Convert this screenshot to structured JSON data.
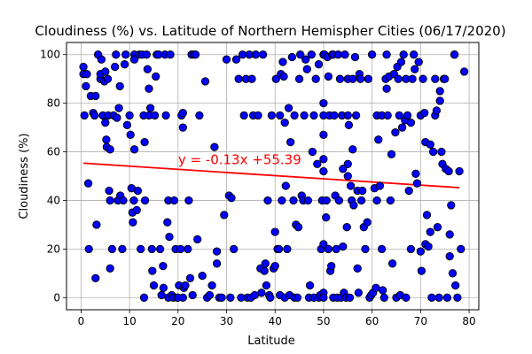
{
  "chart_data": {
    "type": "scatter",
    "title": "Cloudiness (%) vs. Latitude of Northern Hemispher Cities (06/17/2020)",
    "xlabel": "Latitude",
    "ylabel": "Cloudiness (%)",
    "xlim": [
      -3,
      82
    ],
    "ylim": [
      -5,
      105
    ],
    "xticks": [
      0,
      10,
      20,
      30,
      40,
      50,
      60,
      70,
      80
    ],
    "yticks": [
      0,
      20,
      40,
      60,
      80,
      100
    ],
    "grid": true,
    "marker_color": "#0000ff",
    "marker_edge": "#000000",
    "regression": {
      "slope": -0.13,
      "intercept": 55.39,
      "x_range": [
        0.5,
        78
      ],
      "equation_label": "y = -0.13x +55.39",
      "color": "#ff0000"
    },
    "points": [
      [
        0.5,
        95
      ],
      [
        0.5,
        92
      ],
      [
        0.7,
        75
      ],
      [
        1,
        87
      ],
      [
        1.2,
        92
      ],
      [
        1.5,
        47
      ],
      [
        1.6,
        20
      ],
      [
        2,
        83
      ],
      [
        2.5,
        76
      ],
      [
        2.8,
        75
      ],
      [
        3,
        83
      ],
      [
        3,
        8
      ],
      [
        3.2,
        30
      ],
      [
        3.5,
        100
      ],
      [
        4,
        90
      ],
      [
        4,
        92
      ],
      [
        4.2,
        98
      ],
      [
        4.5,
        75
      ],
      [
        4.8,
        89
      ],
      [
        5,
        72
      ],
      [
        5,
        93
      ],
      [
        5.2,
        65
      ],
      [
        5.3,
        62
      ],
      [
        5.5,
        90
      ],
      [
        5.6,
        75
      ],
      [
        5.8,
        44
      ],
      [
        6,
        40
      ],
      [
        6,
        12
      ],
      [
        6,
        61
      ],
      [
        6.4,
        20
      ],
      [
        6.7,
        75
      ],
      [
        7,
        95
      ],
      [
        7.2,
        100
      ],
      [
        7.4,
        74
      ],
      [
        7.6,
        40
      ],
      [
        7.8,
        78
      ],
      [
        8,
        87
      ],
      [
        8.1,
        42
      ],
      [
        8.5,
        20
      ],
      [
        8.7,
        40
      ],
      [
        9,
        96
      ],
      [
        9.2,
        100
      ],
      [
        9.5,
        71
      ],
      [
        10,
        75
      ],
      [
        10.2,
        67
      ],
      [
        10.4,
        45
      ],
      [
        10.6,
        35
      ],
      [
        10.7,
        31
      ],
      [
        10.9,
        40
      ],
      [
        11,
        61
      ],
      [
        11,
        100
      ],
      [
        11,
        98
      ],
      [
        11.5,
        36
      ],
      [
        11.7,
        44
      ],
      [
        12,
        100
      ],
      [
        12.3,
        20
      ],
      [
        12.6,
        100
      ],
      [
        12.9,
        75
      ],
      [
        13,
        0
      ],
      [
        13.1,
        64
      ],
      [
        13.2,
        40
      ],
      [
        13.5,
        100
      ],
      [
        13.7,
        94
      ],
      [
        14,
        75
      ],
      [
        14,
        86
      ],
      [
        14.3,
        78
      ],
      [
        14.6,
        20
      ],
      [
        14.7,
        11
      ],
      [
        15,
        5
      ],
      [
        15.2,
        75
      ],
      [
        15.4,
        91
      ],
      [
        15.6,
        100
      ],
      [
        16,
        100
      ],
      [
        16.3,
        20
      ],
      [
        16.6,
        1
      ],
      [
        16.9,
        13
      ],
      [
        17,
        4
      ],
      [
        17.3,
        100
      ],
      [
        17.5,
        75
      ],
      [
        17.8,
        31
      ],
      [
        18,
        40
      ],
      [
        18,
        0
      ],
      [
        18.2,
        25
      ],
      [
        18.4,
        100
      ],
      [
        18.7,
        1
      ],
      [
        19,
        0
      ],
      [
        19.2,
        40
      ],
      [
        19.5,
        20
      ],
      [
        19.8,
        0
      ],
      [
        20,
        0
      ],
      [
        20.2,
        5
      ],
      [
        20.5,
        20
      ],
      [
        20.7,
        75
      ],
      [
        21,
        76
      ],
      [
        21,
        70
      ],
      [
        21,
        0
      ],
      [
        21.2,
        4
      ],
      [
        21.5,
        5
      ],
      [
        22,
        20
      ],
      [
        22.2,
        40
      ],
      [
        22.5,
        8
      ],
      [
        22.8,
        100
      ],
      [
        23,
        1
      ],
      [
        23.3,
        100
      ],
      [
        23.6,
        100
      ],
      [
        24,
        24
      ],
      [
        24.4,
        75
      ],
      [
        25,
        9
      ],
      [
        25.6,
        89
      ],
      [
        26,
        0
      ],
      [
        26.5,
        1
      ],
      [
        27,
        5
      ],
      [
        27.5,
        62
      ],
      [
        28,
        19
      ],
      [
        28,
        14
      ],
      [
        28.5,
        0
      ],
      [
        29,
        0
      ],
      [
        29.5,
        34
      ],
      [
        30,
        98
      ],
      [
        30.5,
        42
      ],
      [
        30.8,
        0
      ],
      [
        31,
        41
      ],
      [
        31.5,
        20
      ],
      [
        32,
        98
      ],
      [
        32.5,
        90
      ],
      [
        33,
        0
      ],
      [
        33.3,
        100
      ],
      [
        33.6,
        75
      ],
      [
        34,
        90
      ],
      [
        34.3,
        0
      ],
      [
        34.7,
        100
      ],
      [
        35,
        0
      ],
      [
        35.2,
        90
      ],
      [
        35.5,
        75
      ],
      [
        35.8,
        1
      ],
      [
        36,
        100
      ],
      [
        36.5,
        75
      ],
      [
        37,
        12
      ],
      [
        37.2,
        2
      ],
      [
        37.5,
        100
      ],
      [
        37.8,
        11
      ],
      [
        38,
        14
      ],
      [
        38.2,
        5
      ],
      [
        38.5,
        40
      ],
      [
        38.8,
        1
      ],
      [
        39,
        0
      ],
      [
        39.3,
        75
      ],
      [
        39.7,
        12
      ],
      [
        40,
        27
      ],
      [
        40,
        13
      ],
      [
        40.2,
        90
      ],
      [
        40.5,
        20
      ],
      [
        40.8,
        20
      ],
      [
        41,
        1
      ],
      [
        41,
        75
      ],
      [
        41.2,
        92
      ],
      [
        41.4,
        40
      ],
      [
        41.6,
        97
      ],
      [
        41.8,
        91
      ],
      [
        42,
        0
      ],
      [
        42,
        72
      ],
      [
        42.2,
        46
      ],
      [
        42.5,
        20
      ],
      [
        42.8,
        78
      ],
      [
        43,
        1
      ],
      [
        43.2,
        64
      ],
      [
        43.5,
        99
      ],
      [
        43.8,
        40
      ],
      [
        44,
        0
      ],
      [
        44,
        75
      ],
      [
        44.3,
        30
      ],
      [
        44.6,
        0
      ],
      [
        44.8,
        29
      ],
      [
        45,
        90
      ],
      [
        45.2,
        100
      ],
      [
        45.5,
        42
      ],
      [
        45.8,
        40
      ],
      [
        46,
        75
      ],
      [
        46.3,
        98
      ],
      [
        46.6,
        94
      ],
      [
        46.8,
        40
      ],
      [
        47,
        0
      ],
      [
        47.2,
        5
      ],
      [
        47.5,
        100
      ],
      [
        47.7,
        60
      ],
      [
        48,
        0
      ],
      [
        48,
        75
      ],
      [
        48.4,
        90
      ],
      [
        48.7,
        55
      ],
      [
        49,
        0
      ],
      [
        49,
        96
      ],
      [
        49.3,
        1
      ],
      [
        49.5,
        20
      ],
      [
        49.7,
        40
      ],
      [
        50,
        100
      ],
      [
        50,
        80
      ],
      [
        50,
        75
      ],
      [
        50,
        67
      ],
      [
        50,
        57
      ],
      [
        50,
        52
      ],
      [
        50,
        22
      ],
      [
        50,
        2
      ],
      [
        50,
        0
      ],
      [
        50.2,
        100
      ],
      [
        50.5,
        33
      ],
      [
        50.6,
        40
      ],
      [
        50.8,
        99
      ],
      [
        51,
        91
      ],
      [
        51,
        20
      ],
      [
        51.2,
        75
      ],
      [
        51.4,
        11
      ],
      [
        51.6,
        13
      ],
      [
        51.8,
        100
      ],
      [
        52,
        100
      ],
      [
        52,
        0
      ],
      [
        52.2,
        75
      ],
      [
        52.4,
        42
      ],
      [
        52.6,
        20
      ],
      [
        52.8,
        0
      ],
      [
        53,
        100
      ],
      [
        53.2,
        40
      ],
      [
        53.4,
        90
      ],
      [
        53.6,
        0
      ],
      [
        53.8,
        75
      ],
      [
        54,
        53
      ],
      [
        54,
        21
      ],
      [
        54.2,
        2
      ],
      [
        54.4,
        100
      ],
      [
        54.6,
        0
      ],
      [
        54.8,
        29
      ],
      [
        55,
        75
      ],
      [
        55,
        50
      ],
      [
        55,
        55
      ],
      [
        55,
        90
      ],
      [
        55.2,
        71
      ],
      [
        55.4,
        0
      ],
      [
        55.6,
        46
      ],
      [
        55.8,
        40
      ],
      [
        56,
        90
      ],
      [
        56,
        61
      ],
      [
        56.2,
        38
      ],
      [
        56.5,
        99
      ],
      [
        56.7,
        75
      ],
      [
        57,
        44
      ],
      [
        57,
        12
      ],
      [
        57.2,
        2
      ],
      [
        57.4,
        92
      ],
      [
        57.6,
        90
      ],
      [
        57.8,
        40
      ],
      [
        58,
        44
      ],
      [
        58.3,
        29
      ],
      [
        58.6,
        20
      ],
      [
        59,
        31
      ],
      [
        59.2,
        90
      ],
      [
        59.5,
        0
      ],
      [
        59.8,
        1
      ],
      [
        60,
        100
      ],
      [
        60.2,
        2
      ],
      [
        60.5,
        45
      ],
      [
        60.8,
        4
      ],
      [
        61,
        40
      ],
      [
        61,
        75
      ],
      [
        61.3,
        65
      ],
      [
        61.6,
        46
      ],
      [
        62,
        75
      ],
      [
        62,
        20
      ],
      [
        62.2,
        3
      ],
      [
        62.5,
        0
      ],
      [
        62.8,
        90
      ],
      [
        63,
        100
      ],
      [
        63,
        86
      ],
      [
        63.2,
        75
      ],
      [
        63.5,
        91
      ],
      [
        63.8,
        40
      ],
      [
        64,
        59
      ],
      [
        64.2,
        14
      ],
      [
        64.5,
        92
      ],
      [
        64.8,
        68
      ],
      [
        65,
        0
      ],
      [
        65.2,
        95
      ],
      [
        65.4,
        90
      ],
      [
        65.6,
        75
      ],
      [
        65.8,
        1
      ],
      [
        66,
        97
      ],
      [
        66.2,
        70
      ],
      [
        66.5,
        100
      ],
      [
        66.8,
        73
      ],
      [
        67,
        0
      ],
      [
        67,
        90
      ],
      [
        67.3,
        75
      ],
      [
        67.6,
        44
      ],
      [
        68,
        72
      ],
      [
        68,
        20
      ],
      [
        68.3,
        90
      ],
      [
        68.6,
        100
      ],
      [
        68.8,
        94
      ],
      [
        69,
        51
      ],
      [
        69.3,
        47
      ],
      [
        69.6,
        97
      ],
      [
        70,
        75
      ],
      [
        70,
        19
      ],
      [
        70.2,
        11
      ],
      [
        70.5,
        90
      ],
      [
        70.8,
        76
      ],
      [
        71,
        22
      ],
      [
        71,
        64
      ],
      [
        71.3,
        34
      ],
      [
        71.6,
        21
      ],
      [
        72,
        63
      ],
      [
        72,
        27
      ],
      [
        72.3,
        0
      ],
      [
        72.6,
        60
      ],
      [
        73,
        90
      ],
      [
        73,
        75
      ],
      [
        73.3,
        77
      ],
      [
        73.5,
        29
      ],
      [
        73.8,
        0
      ],
      [
        74,
        81
      ],
      [
        74,
        85
      ],
      [
        74.3,
        60
      ],
      [
        74.5,
        55
      ],
      [
        74.8,
        90
      ],
      [
        75,
        90
      ],
      [
        75.2,
        53
      ],
      [
        75.5,
        0
      ],
      [
        75.8,
        52
      ],
      [
        76,
        17
      ],
      [
        76,
        26
      ],
      [
        76.3,
        38
      ],
      [
        76.6,
        10
      ],
      [
        77,
        100
      ],
      [
        77,
        100
      ],
      [
        77.2,
        5
      ],
      [
        77.6,
        0
      ],
      [
        78,
        52
      ],
      [
        78.3,
        20
      ],
      [
        79,
        93
      ]
    ]
  }
}
